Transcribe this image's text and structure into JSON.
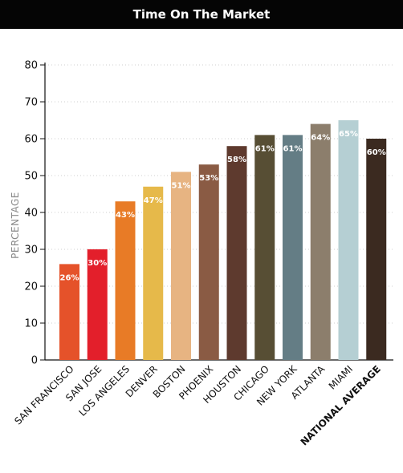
{
  "chart_data": {
    "type": "bar",
    "title": "Time On The Market",
    "xlabel": "",
    "ylabel": "PERCENTAGE",
    "ylim": [
      0,
      80
    ],
    "yticks": [
      0,
      10,
      20,
      30,
      40,
      50,
      60,
      70,
      80
    ],
    "grid": true,
    "categories": [
      "SAN FRANCISCO",
      "SAN JOSE",
      "LOS ANGELES",
      "DENVER",
      "BOSTON",
      "PHOENIX",
      "HOUSTON",
      "CHICAGO",
      "NEW YORK",
      "ATLANTA",
      "MIAMI",
      "NATIONAL AVERAGE"
    ],
    "values": [
      26,
      30,
      43,
      47,
      51,
      53,
      58,
      61,
      61,
      64,
      65,
      60
    ],
    "data_labels": [
      "26%",
      "30%",
      "43%",
      "47%",
      "51%",
      "53%",
      "58%",
      "61%",
      "61%",
      "64%",
      "65%",
      "60%"
    ],
    "colors": [
      "#e5522a",
      "#e31f2b",
      "#e87b26",
      "#e6b94a",
      "#e7b482",
      "#8a5b44",
      "#5e3a2e",
      "#574e34",
      "#647d85",
      "#8c7e6c",
      "#b5cfd3",
      "#3b2a20"
    ],
    "emphasized_category": "NATIONAL AVERAGE"
  }
}
